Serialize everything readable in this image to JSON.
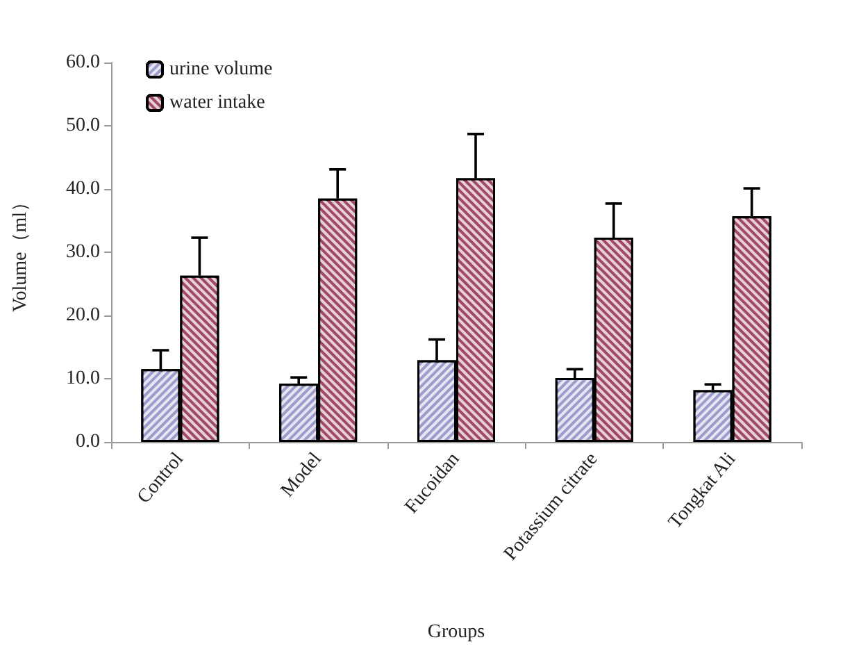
{
  "chart_data": {
    "type": "bar",
    "xlabel": "Groups",
    "ylabel": "Volume（ml）",
    "categories": [
      "Control",
      "Model",
      "Fucoidan",
      "Potassium citrate",
      "Tongkat Ali"
    ],
    "series": [
      {
        "name": "urine volume",
        "color": "#9c9ccc",
        "values": [
          11.5,
          9.2,
          12.9,
          10.1,
          8.2
        ],
        "errors": [
          [
            11.5,
            14.5
          ],
          [
            9.2,
            10.2
          ],
          [
            12.9,
            16.2
          ],
          [
            10.1,
            11.5
          ],
          [
            8.2,
            9.1
          ]
        ]
      },
      {
        "name": "water intake",
        "color": "#a04866",
        "values": [
          26.3,
          38.5,
          41.7,
          32.3,
          35.7
        ],
        "errors": [
          [
            26.3,
            32.3
          ],
          [
            38.5,
            43.1
          ],
          [
            41.7,
            48.7
          ],
          [
            32.3,
            37.7
          ],
          [
            35.7,
            40.1
          ]
        ]
      }
    ],
    "ylim": [
      0,
      60
    ],
    "yticks": [
      {
        "value": 0,
        "label": "0.0"
      },
      {
        "value": 10,
        "label": "10.0"
      },
      {
        "value": 20,
        "label": "20.0"
      },
      {
        "value": 30,
        "label": "30.0"
      },
      {
        "value": 40,
        "label": "40.0"
      },
      {
        "value": 50,
        "label": "50.0"
      },
      {
        "value": 60,
        "label": "60.0"
      }
    ],
    "grid": false,
    "legend": "top left"
  }
}
